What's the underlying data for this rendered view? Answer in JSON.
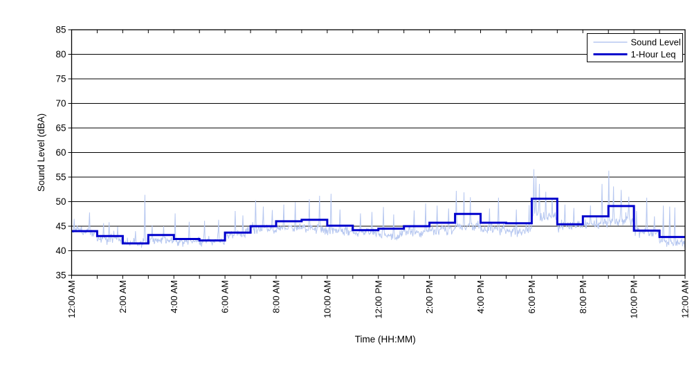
{
  "chart_data": {
    "type": "line",
    "title": "",
    "xlabel": "Time (HH:MM)",
    "ylabel": "Sound Level (dBA)",
    "ylim": [
      35,
      85
    ],
    "ytick_interval": 5,
    "ytick_values": [
      35,
      40,
      45,
      50,
      55,
      60,
      65,
      70,
      75,
      80,
      85
    ],
    "ytick_labels": [
      "35",
      "40",
      "45",
      "50",
      "55",
      "60",
      "65",
      "70",
      "75",
      "80",
      "85"
    ],
    "xlim_hours": [
      0,
      24
    ],
    "xtick_hours": [
      0,
      2,
      4,
      6,
      8,
      10,
      12,
      14,
      16,
      18,
      20,
      22,
      24
    ],
    "xtick_labels": [
      "12:00 AM",
      "2:00 AM",
      "4:00 AM",
      "6:00 AM",
      "8:00 AM",
      "10:00 AM",
      "12:00 PM",
      "2:00 PM",
      "4:00 PM",
      "6:00 PM",
      "8:00 PM",
      "10:00 PM",
      "12:00 AM"
    ],
    "minor_xtick_every_hours": 1,
    "grid": "horizontal",
    "grid_color": "#000000",
    "background_color": "#ffffff",
    "legend": {
      "position": "top-right",
      "entries": [
        {
          "label": "Sound Level",
          "color": "#b6c7f0",
          "line_width": 1.5
        },
        {
          "label": "1-Hour Leq",
          "color": "#0000cc",
          "line_width": 3
        }
      ]
    },
    "series": [
      {
        "name": "Sound Level",
        "render": "noisy-line",
        "color": "#b6c7f0",
        "line_width": 1,
        "points_per_hour": 60,
        "seed": 7,
        "hourly_profile": [
          {
            "hour": 0,
            "base": 43.4,
            "spread": 1.2,
            "spikes": [
              [
                0.1,
                46.5
              ],
              [
                0.7,
                47.8
              ]
            ]
          },
          {
            "hour": 1,
            "base": 42.0,
            "spread": 1.1,
            "spikes": [
              [
                1.25,
                45.6
              ],
              [
                1.46,
                45.8
              ],
              [
                1.8,
                44.9
              ]
            ]
          },
          {
            "hour": 2,
            "base": 41.2,
            "spread": 0.9,
            "spikes": [
              [
                2.5,
                44.0
              ],
              [
                2.87,
                51.4
              ]
            ]
          },
          {
            "hour": 3,
            "base": 41.9,
            "spread": 1.0,
            "spikes": [
              [
                3.15,
                45.2
              ],
              [
                3.6,
                45.0
              ]
            ]
          },
          {
            "hour": 4,
            "base": 41.6,
            "spread": 1.0,
            "spikes": [
              [
                4.05,
                47.6
              ],
              [
                4.6,
                45.9
              ]
            ]
          },
          {
            "hour": 5,
            "base": 41.6,
            "spread": 1.0,
            "spikes": [
              [
                5.2,
                46.1
              ],
              [
                5.75,
                46.3
              ]
            ]
          },
          {
            "hour": 6,
            "base": 42.9,
            "spread": 1.3,
            "spikes": [
              [
                6.4,
                48.1
              ],
              [
                6.7,
                47.2
              ]
            ]
          },
          {
            "hour": 7,
            "base": 43.9,
            "spread": 1.5,
            "spikes": [
              [
                7.2,
                50.3
              ],
              [
                7.5,
                49.0
              ],
              [
                7.85,
                48.3
              ]
            ]
          },
          {
            "hour": 8,
            "base": 44.1,
            "spread": 1.5,
            "spikes": [
              [
                8.3,
                49.4
              ],
              [
                8.75,
                49.9
              ]
            ]
          },
          {
            "hour": 9,
            "base": 44.1,
            "spread": 1.5,
            "spikes": [
              [
                9.3,
                50.5
              ],
              [
                9.7,
                51.2
              ]
            ]
          },
          {
            "hour": 10,
            "base": 43.8,
            "spread": 1.4,
            "spikes": [
              [
                10.15,
                51.6
              ],
              [
                10.5,
                48.4
              ]
            ]
          },
          {
            "hour": 11,
            "base": 43.3,
            "spread": 1.3,
            "spikes": [
              [
                11.3,
                47.6
              ],
              [
                11.75,
                47.9
              ]
            ]
          },
          {
            "hour": 12,
            "base": 42.7,
            "spread": 1.3,
            "spikes": [
              [
                12.2,
                48.9
              ],
              [
                12.6,
                47.4
              ]
            ]
          },
          {
            "hour": 13,
            "base": 43.4,
            "spread": 1.4,
            "spikes": [
              [
                13.4,
                48.2
              ],
              [
                13.85,
                49.6
              ]
            ]
          },
          {
            "hour": 14,
            "base": 43.9,
            "spread": 1.4,
            "spikes": [
              [
                14.3,
                49.2
              ],
              [
                14.75,
                48.6
              ]
            ]
          },
          {
            "hour": 15,
            "base": 44.4,
            "spread": 1.6,
            "spikes": [
              [
                15.05,
                52.2
              ],
              [
                15.35,
                51.9
              ],
              [
                15.6,
                50.9
              ]
            ]
          },
          {
            "hour": 16,
            "base": 43.9,
            "spread": 1.5,
            "spikes": [
              [
                16.35,
                48.6
              ],
              [
                16.7,
                50.8
              ]
            ]
          },
          {
            "hour": 17,
            "base": 43.6,
            "spread": 1.4,
            "spikes": [
              [
                17.4,
                48.4
              ],
              [
                17.9,
                49.3
              ]
            ]
          },
          {
            "hour": 18,
            "base": 46.3,
            "spread": 1.8,
            "spikes": [
              [
                18.08,
                56.6
              ],
              [
                18.17,
                55.2
              ],
              [
                18.3,
                53.6
              ],
              [
                18.55,
                52.0
              ],
              [
                18.8,
                50.6
              ]
            ]
          },
          {
            "hour": 19,
            "base": 44.6,
            "spread": 1.5,
            "spikes": [
              [
                19.3,
                49.4
              ],
              [
                19.65,
                48.7
              ]
            ]
          },
          {
            "hour": 20,
            "base": 45.0,
            "spread": 1.6,
            "spikes": [
              [
                20.3,
                49.2
              ],
              [
                20.75,
                53.6
              ]
            ]
          },
          {
            "hour": 21,
            "base": 45.6,
            "spread": 1.8,
            "spikes": [
              [
                21.02,
                56.3
              ],
              [
                21.2,
                53.1
              ],
              [
                21.5,
                52.4
              ],
              [
                21.8,
                51.0
              ]
            ]
          },
          {
            "hour": 22,
            "base": 43.3,
            "spread": 1.3,
            "spikes": [
              [
                22.1,
                48.1
              ],
              [
                22.5,
                50.8
              ],
              [
                22.8,
                47.0
              ]
            ]
          },
          {
            "hour": 23,
            "base": 41.4,
            "spread": 1.1,
            "spikes": [
              [
                23.15,
                49.2
              ],
              [
                23.4,
                49.0
              ],
              [
                23.6,
                48.8
              ]
            ]
          }
        ]
      },
      {
        "name": "1-Hour Leq",
        "render": "step",
        "color": "#0000cc",
        "line_width": 3,
        "hours": [
          0,
          1,
          2,
          3,
          4,
          5,
          6,
          7,
          8,
          9,
          10,
          11,
          12,
          13,
          14,
          15,
          16,
          17,
          18,
          19,
          20,
          21,
          22,
          23
        ],
        "values": [
          44.0,
          43.0,
          41.5,
          43.2,
          42.4,
          42.1,
          43.7,
          45.0,
          46.0,
          46.3,
          45.1,
          44.2,
          44.5,
          45.0,
          45.7,
          47.5,
          45.7,
          45.6,
          50.6,
          45.4,
          47.0,
          49.1,
          44.1,
          42.8
        ]
      }
    ]
  }
}
